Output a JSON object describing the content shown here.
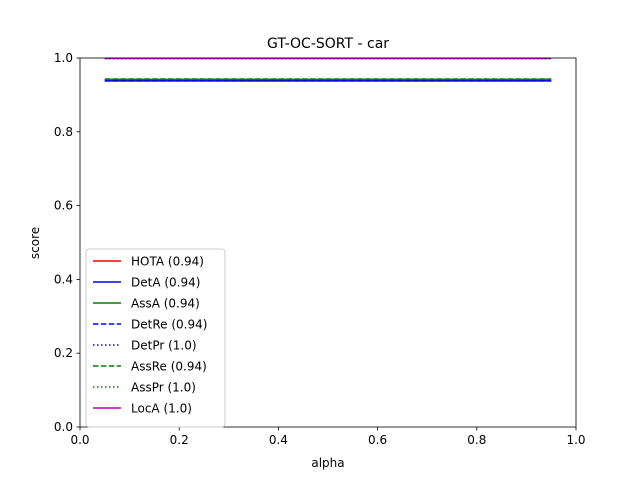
{
  "chart_data": {
    "type": "line",
    "title": "GT-OC-SORT - car",
    "xlabel": "alpha",
    "ylabel": "score",
    "xlim": [
      0.0,
      1.0
    ],
    "ylim": [
      0.0,
      1.0
    ],
    "xticks": [
      "0.0",
      "0.2",
      "0.4",
      "0.6",
      "0.8",
      "1.0"
    ],
    "yticks": [
      "0.0",
      "0.2",
      "0.4",
      "0.6",
      "0.8",
      "1.0"
    ],
    "grid": false,
    "legend_position": "lower-left",
    "x": [
      0.05,
      0.1,
      0.15,
      0.2,
      0.25,
      0.3,
      0.35,
      0.4,
      0.45,
      0.5,
      0.55,
      0.6,
      0.65,
      0.7,
      0.75,
      0.8,
      0.85,
      0.9,
      0.95
    ],
    "series": [
      {
        "name": "HOTA (0.94)",
        "color": "#ff0000",
        "dash": "solid",
        "values": [
          0.94,
          0.94,
          0.94,
          0.94,
          0.94,
          0.94,
          0.94,
          0.94,
          0.94,
          0.94,
          0.94,
          0.94,
          0.94,
          0.94,
          0.94,
          0.94,
          0.94,
          0.94,
          0.94
        ]
      },
      {
        "name": "DetA (0.94)",
        "color": "#0000ff",
        "dash": "solid",
        "values": [
          0.938,
          0.938,
          0.938,
          0.938,
          0.938,
          0.938,
          0.938,
          0.938,
          0.938,
          0.938,
          0.938,
          0.938,
          0.938,
          0.938,
          0.938,
          0.938,
          0.938,
          0.938,
          0.938
        ]
      },
      {
        "name": "AssA (0.94)",
        "color": "#008000",
        "dash": "solid",
        "values": [
          0.942,
          0.942,
          0.942,
          0.942,
          0.942,
          0.942,
          0.942,
          0.942,
          0.942,
          0.942,
          0.942,
          0.942,
          0.942,
          0.942,
          0.942,
          0.942,
          0.942,
          0.942,
          0.942
        ]
      },
      {
        "name": "DetRe (0.94)",
        "color": "#0000ff",
        "dash": "dashed",
        "values": [
          0.938,
          0.938,
          0.938,
          0.938,
          0.938,
          0.938,
          0.938,
          0.938,
          0.938,
          0.938,
          0.938,
          0.938,
          0.938,
          0.938,
          0.938,
          0.938,
          0.938,
          0.938,
          0.938
        ]
      },
      {
        "name": "DetPr (1.0)",
        "color": "#0000ff",
        "dash": "dotted",
        "values": [
          0.998,
          0.998,
          0.998,
          0.998,
          0.998,
          0.998,
          0.998,
          0.998,
          0.998,
          0.998,
          0.998,
          0.998,
          0.998,
          0.998,
          0.998,
          0.998,
          0.998,
          0.998,
          0.998
        ]
      },
      {
        "name": "AssRe (0.94)",
        "color": "#008000",
        "dash": "dashed",
        "values": [
          0.943,
          0.943,
          0.943,
          0.943,
          0.943,
          0.943,
          0.943,
          0.943,
          0.943,
          0.943,
          0.943,
          0.943,
          0.943,
          0.943,
          0.943,
          0.943,
          0.943,
          0.943,
          0.943
        ]
      },
      {
        "name": "AssPr (1.0)",
        "color": "#008000",
        "dash": "dotted",
        "values": [
          0.998,
          0.998,
          0.998,
          0.998,
          0.998,
          0.998,
          0.998,
          0.998,
          0.998,
          0.998,
          0.998,
          0.998,
          0.998,
          0.998,
          0.998,
          0.998,
          0.998,
          0.998,
          0.998
        ]
      },
      {
        "name": "LocA (1.0)",
        "color": "#bf00bf",
        "dash": "solid",
        "values": [
          0.999,
          0.999,
          0.999,
          0.999,
          0.999,
          0.999,
          0.999,
          0.999,
          0.999,
          0.999,
          0.999,
          0.999,
          0.999,
          0.999,
          0.999,
          0.999,
          0.999,
          0.999,
          0.999
        ]
      }
    ]
  }
}
